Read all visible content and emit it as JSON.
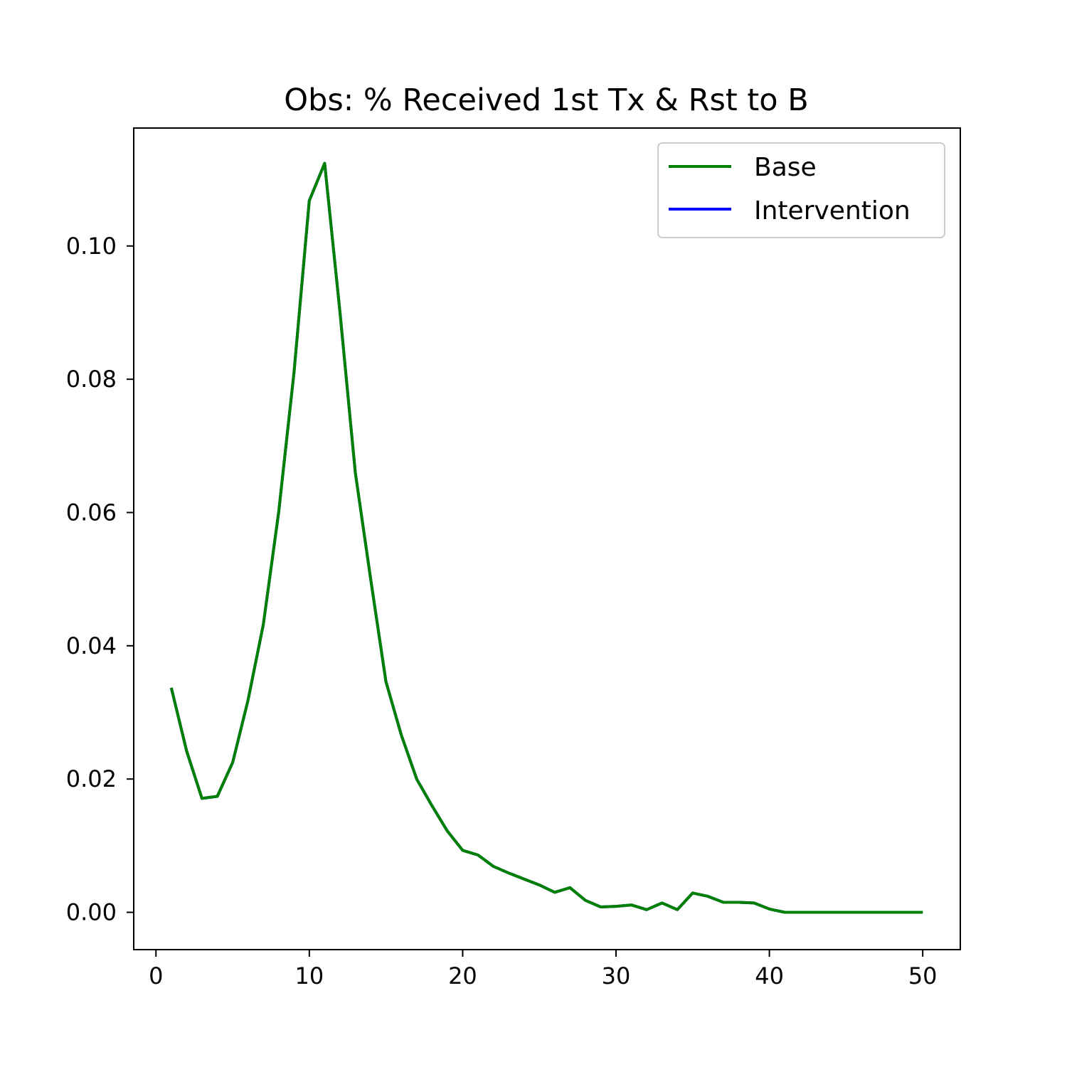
{
  "chart_data": {
    "type": "line",
    "title": "Obs: % Received 1st Tx & Rst to B",
    "xlabel": "",
    "ylabel": "",
    "xlim": [
      -1.45,
      52.45
    ],
    "ylim": [
      -0.0056,
      0.1177
    ],
    "xticks": [
      0,
      10,
      20,
      30,
      40,
      50
    ],
    "xtick_labels": [
      "0",
      "10",
      "20",
      "30",
      "40",
      "50"
    ],
    "yticks": [
      0.0,
      0.02,
      0.04,
      0.06,
      0.08,
      0.1
    ],
    "ytick_labels": [
      "0.00",
      "0.02",
      "0.04",
      "0.06",
      "0.08",
      "0.10"
    ],
    "grid": false,
    "legend": {
      "position": "top-right"
    },
    "series": [
      {
        "name": "Base",
        "color": "#008000",
        "x": [
          1,
          2,
          3,
          4,
          5,
          6,
          7,
          8,
          9,
          10,
          11,
          12,
          13,
          14,
          15,
          16,
          17,
          18,
          19,
          20,
          21,
          22,
          23,
          24,
          25,
          26,
          27,
          28,
          29,
          30,
          31,
          32,
          33,
          34,
          35,
          36,
          37,
          38,
          39,
          40,
          41,
          42,
          43,
          44,
          45,
          46,
          47,
          48,
          49,
          50
        ],
        "values": [
          0.0337,
          0.0242,
          0.0171,
          0.0174,
          0.0225,
          0.0318,
          0.0432,
          0.06,
          0.081,
          0.1068,
          0.1124,
          0.09,
          0.066,
          0.05,
          0.0346,
          0.0266,
          0.02,
          0.016,
          0.0122,
          0.0093,
          0.0086,
          0.0069,
          0.0059,
          0.005,
          0.0041,
          0.003,
          0.0037,
          0.0018,
          0.0008,
          0.0009,
          0.0011,
          0.0004,
          0.0014,
          0.0004,
          0.0029,
          0.0024,
          0.0015,
          0.0015,
          0.0014,
          0.0005,
          0.0,
          0.0,
          0.0,
          0.0,
          0.0,
          0.0,
          0.0,
          0.0,
          0.0,
          0.0
        ]
      },
      {
        "name": "Intervention",
        "color": "#0000ff",
        "x": [
          1,
          2,
          3,
          4,
          5,
          6,
          7,
          8,
          9,
          10,
          11,
          12,
          13,
          14,
          15,
          16,
          17,
          18,
          19,
          20,
          21,
          22,
          23,
          24,
          25,
          26,
          27,
          28,
          29,
          30,
          31,
          32,
          33,
          34,
          35,
          36,
          37,
          38,
          39,
          40,
          41,
          42,
          43,
          44,
          45,
          46,
          47,
          48,
          49,
          50
        ],
        "values": [
          0.0337,
          0.0242,
          0.0171,
          0.0174,
          0.0225,
          0.0318,
          0.0432,
          0.06,
          0.081,
          0.1068,
          0.1124,
          0.09,
          0.066,
          0.05,
          0.0346,
          0.0266,
          0.02,
          0.016,
          0.0122,
          0.0093,
          0.0086,
          0.0069,
          0.0059,
          0.005,
          0.0041,
          0.003,
          0.0037,
          0.0018,
          0.0008,
          0.0009,
          0.0011,
          0.0004,
          0.0014,
          0.0004,
          0.0029,
          0.0024,
          0.0015,
          0.0015,
          0.0014,
          0.0005,
          0.0,
          0.0,
          0.0,
          0.0,
          0.0,
          0.0,
          0.0,
          0.0,
          0.0,
          0.0
        ]
      }
    ]
  }
}
